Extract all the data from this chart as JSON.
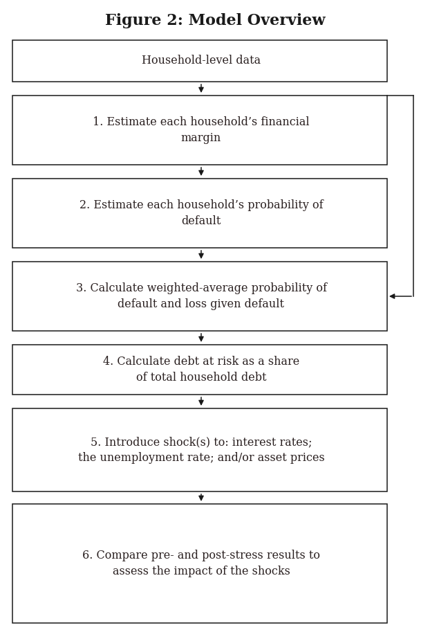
{
  "title": "Figure 2: Model Overview",
  "title_fontsize": 16,
  "title_fontweight": "bold",
  "background_color": "#ffffff",
  "box_facecolor": "#ffffff",
  "box_edgecolor": "#1a1a1a",
  "text_color": "#2a2020",
  "font_family": "serif",
  "boxes": [
    {
      "label": "Household-level data"
    },
    {
      "label": "1. Estimate each household’s financial\nmargin"
    },
    {
      "label": "2. Estimate each household’s probability of\ndefault"
    },
    {
      "label": "3. Calculate weighted-average probability of\ndefault and loss given default"
    },
    {
      "label": "4. Calculate debt at risk as a share\nof total household debt"
    },
    {
      "label": "5. Introduce shock(s) to: interest rates;\nthe unemployment rate; and/or asset prices"
    },
    {
      "label": "6. Compare pre- and post-stress results to\nassess the impact of the shocks"
    }
  ],
  "arrow_color": "#1a1a1a",
  "text_fontsize": 11.5,
  "fig_width": 6.22,
  "fig_height": 9.26,
  "dpi": 100
}
